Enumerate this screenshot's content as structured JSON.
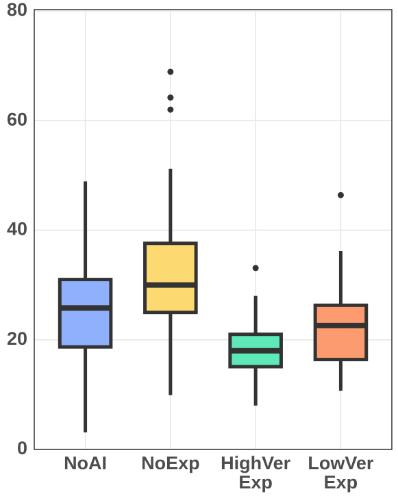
{
  "chart_data": {
    "type": "box",
    "categories": [
      [
        "NoAI"
      ],
      [
        "NoExp"
      ],
      [
        "HighVer",
        "Exp"
      ],
      [
        "LowVer",
        "Exp"
      ]
    ],
    "series": [
      {
        "color": "#8fb0fc",
        "whislo": 3.1,
        "q1": 18.7,
        "median": 25.8,
        "q3": 31,
        "whishi": 48.9,
        "outliers": []
      },
      {
        "color": "#fdd972",
        "whislo": 9.9,
        "q1": 25,
        "median": 30,
        "q3": 37.6,
        "whishi": 51.2,
        "outliers": [
          62,
          64.2,
          68.9
        ]
      },
      {
        "color": "#5deab8",
        "whislo": 8,
        "q1": 15.1,
        "median": 18,
        "q3": 21,
        "whishi": 28,
        "outliers": [
          33.1
        ]
      },
      {
        "color": "#fd9b70",
        "whislo": 10.7,
        "q1": 16.4,
        "median": 22.6,
        "q3": 26.3,
        "whishi": 36.2,
        "outliers": [
          46.4
        ]
      }
    ],
    "ylim": [
      0,
      80
    ],
    "yticks": [
      0,
      20,
      40,
      60,
      80
    ],
    "grid": true
  }
}
